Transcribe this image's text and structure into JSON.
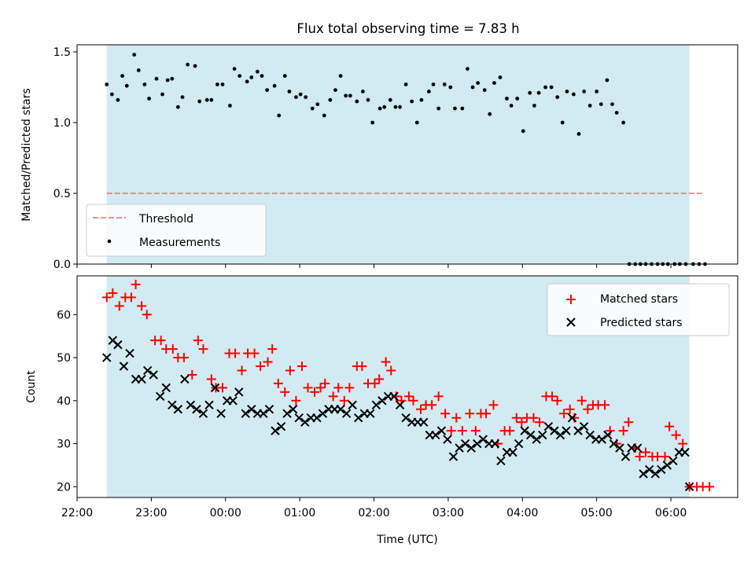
{
  "title": "Flux total observing time = 7.83 h",
  "colors": {
    "observing_band": "#add8e6",
    "threshold": "#f08080",
    "measurement": "#000000",
    "matched": "#ff0000",
    "predicted": "#000000"
  },
  "chart_data": [
    {
      "type": "scatter",
      "ylabel": "Matched/Predicted stars",
      "ylim": [
        0,
        1.55
      ],
      "yticks": [
        "0.0",
        "0.5",
        "1.0",
        "1.5"
      ],
      "ytick_values": [
        0,
        0.5,
        1.0,
        1.5
      ],
      "observing_band": [
        22.4,
        30.25
      ],
      "legend": {
        "placement": "lower-left",
        "entries": [
          "Threshold",
          "Measurements"
        ]
      },
      "threshold": {
        "name": "Threshold",
        "value": 0.5,
        "x": [
          22.4,
          30.45
        ]
      },
      "series": [
        {
          "name": "Measurements",
          "x": [
            22.4,
            22.47,
            22.55,
            22.61,
            22.67,
            22.77,
            22.83,
            22.91,
            22.97,
            23.07,
            23.15,
            23.22,
            23.28,
            23.36,
            23.42,
            23.49,
            23.59,
            23.65,
            23.75,
            23.81,
            23.89,
            23.96,
            24.06,
            24.12,
            24.19,
            24.29,
            24.35,
            24.43,
            24.49,
            24.56,
            24.66,
            24.72,
            24.8,
            24.86,
            24.95,
            25.01,
            25.08,
            25.17,
            25.24,
            25.33,
            25.41,
            25.48,
            25.55,
            25.62,
            25.68,
            25.77,
            25.85,
            25.92,
            25.98,
            26.08,
            26.14,
            26.22,
            26.29,
            26.35,
            26.43,
            26.51,
            26.58,
            26.64,
            26.74,
            26.8,
            26.87,
            26.95,
            27.03,
            27.09,
            27.19,
            27.26,
            27.33,
            27.4,
            27.49,
            27.56,
            27.62,
            27.7,
            27.79,
            27.85,
            27.93,
            28.01,
            28.1,
            28.16,
            28.22,
            28.31,
            28.39,
            28.47,
            28.54,
            28.6,
            28.69,
            28.76,
            28.83,
            28.91,
            29.0,
            29.06,
            29.14,
            29.21,
            29.27,
            29.36,
            29.44,
            29.52,
            29.59,
            29.66,
            29.74,
            29.82,
            29.89,
            29.96,
            30.05,
            30.12,
            30.2,
            30.3,
            30.38,
            30.46
          ],
          "y": [
            1.27,
            1.2,
            1.16,
            1.33,
            1.26,
            1.48,
            1.37,
            1.27,
            1.17,
            1.31,
            1.2,
            1.3,
            1.31,
            1.11,
            1.18,
            1.41,
            1.4,
            1.15,
            1.16,
            1.16,
            1.27,
            1.27,
            1.12,
            1.38,
            1.33,
            1.29,
            1.32,
            1.36,
            1.33,
            1.23,
            1.26,
            1.05,
            1.33,
            1.22,
            1.18,
            1.2,
            1.18,
            1.1,
            1.13,
            1.05,
            1.16,
            1.23,
            1.33,
            1.19,
            1.19,
            1.15,
            1.22,
            1.16,
            1.0,
            1.1,
            1.11,
            1.16,
            1.11,
            1.11,
            1.27,
            1.15,
            1.0,
            1.16,
            1.22,
            1.27,
            1.1,
            1.27,
            1.25,
            1.1,
            1.1,
            1.38,
            1.25,
            1.28,
            1.23,
            1.06,
            1.28,
            1.32,
            1.17,
            1.12,
            1.17,
            0.94,
            1.21,
            1.12,
            1.21,
            1.25,
            1.25,
            1.18,
            1.0,
            1.22,
            1.2,
            0.92,
            1.22,
            1.12,
            1.22,
            1.13,
            1.3,
            1.13,
            1.07,
            1.0,
            0.0,
            0.0,
            0.0,
            0.0,
            0.0,
            0.0,
            0.0,
            0.0,
            0.0,
            0.0,
            0.0,
            0.0,
            0.0,
            0.0
          ]
        }
      ]
    },
    {
      "type": "scatter",
      "ylabel": "Count",
      "xlabel": "Time (UTC)",
      "ylim": [
        17.5,
        69
      ],
      "yticks": [
        "20",
        "30",
        "40",
        "50",
        "60"
      ],
      "ytick_values": [
        20,
        30,
        40,
        50,
        60
      ],
      "xlim": [
        22,
        30.9
      ],
      "xticks": [
        "22:00",
        "23:00",
        "00:00",
        "01:00",
        "02:00",
        "03:00",
        "04:00",
        "05:00",
        "06:00"
      ],
      "xtick_values": [
        22,
        23,
        24,
        25,
        26,
        27,
        28,
        29,
        30
      ],
      "observing_band": [
        22.4,
        30.25
      ],
      "legend": {
        "placement": "top-right",
        "entries": [
          "Matched stars",
          "Predicted stars"
        ]
      },
      "series": [
        {
          "name": "Matched stars",
          "marker": "plus",
          "x": [
            22.4,
            22.48,
            22.57,
            22.65,
            22.73,
            22.79,
            22.87,
            22.94,
            23.05,
            23.13,
            23.2,
            23.29,
            23.36,
            23.44,
            23.55,
            23.63,
            23.7,
            23.81,
            23.87,
            23.96,
            24.05,
            24.13,
            24.22,
            24.3,
            24.39,
            24.47,
            24.57,
            24.63,
            24.71,
            24.8,
            24.87,
            24.95,
            25.03,
            25.11,
            25.2,
            25.28,
            25.34,
            25.45,
            25.52,
            25.6,
            25.67,
            25.77,
            25.84,
            25.92,
            26.01,
            26.07,
            26.16,
            26.23,
            26.3,
            26.37,
            26.47,
            26.53,
            26.63,
            26.7,
            26.78,
            26.87,
            26.96,
            27.04,
            27.11,
            27.19,
            27.29,
            27.37,
            27.44,
            27.51,
            27.61,
            27.67,
            27.76,
            27.83,
            27.92,
            27.99,
            28.06,
            28.15,
            28.23,
            28.32,
            28.4,
            28.47,
            28.56,
            28.64,
            28.7,
            28.8,
            28.88,
            28.95,
            29.02,
            29.11,
            29.18,
            29.27,
            29.36,
            29.43,
            29.52,
            29.58,
            29.66,
            29.75,
            29.82,
            29.92,
            29.98,
            30.07,
            30.16,
            30.25,
            30.35,
            30.43,
            30.52
          ],
          "y": [
            64,
            65,
            62,
            64,
            64,
            67,
            62,
            60,
            54,
            54,
            52,
            52,
            50,
            50,
            46,
            54,
            52,
            45,
            43,
            43,
            51,
            51,
            47,
            51,
            51,
            48,
            49,
            52,
            44,
            42,
            47,
            40,
            48,
            43,
            42,
            43,
            44,
            41,
            43,
            40,
            43,
            48,
            48,
            44,
            44,
            45,
            49,
            47,
            41,
            40,
            41,
            40,
            38,
            39,
            39,
            41,
            37,
            33,
            36,
            33,
            37,
            33,
            37,
            37,
            39,
            30,
            33,
            33,
            36,
            35,
            36,
            36,
            35,
            41,
            41,
            40,
            37,
            38,
            36,
            40,
            38,
            39,
            39,
            39,
            33,
            30,
            33,
            35,
            29,
            27,
            28,
            27,
            27,
            27,
            34,
            32,
            30,
            20,
            20,
            20,
            20
          ]
        },
        {
          "name": "Predicted stars",
          "marker": "x",
          "x": [
            22.4,
            22.48,
            22.55,
            22.63,
            22.71,
            22.79,
            22.87,
            22.95,
            23.03,
            23.12,
            23.2,
            23.28,
            23.36,
            23.45,
            23.53,
            23.61,
            23.7,
            23.78,
            23.86,
            23.94,
            24.02,
            24.1,
            24.18,
            24.27,
            24.35,
            24.43,
            24.51,
            24.59,
            24.67,
            24.75,
            24.83,
            24.91,
            24.99,
            25.07,
            25.15,
            25.23,
            25.31,
            25.39,
            25.47,
            25.55,
            25.63,
            25.71,
            25.79,
            25.87,
            25.95,
            26.03,
            26.11,
            26.19,
            26.27,
            26.35,
            26.43,
            26.51,
            26.59,
            26.67,
            26.75,
            26.83,
            26.91,
            26.99,
            27.07,
            27.15,
            27.23,
            27.31,
            27.39,
            27.47,
            27.55,
            27.63,
            27.71,
            27.79,
            27.87,
            27.95,
            28.03,
            28.11,
            28.19,
            28.27,
            28.35,
            28.43,
            28.51,
            28.59,
            28.67,
            28.75,
            28.83,
            28.91,
            28.99,
            29.07,
            29.15,
            29.23,
            29.31,
            29.39,
            29.47,
            29.55,
            29.63,
            29.71,
            29.79,
            29.87,
            29.95,
            30.03,
            30.11,
            30.19,
            30.25
          ],
          "y": [
            50,
            54,
            53,
            48,
            51,
            45,
            45,
            47,
            46,
            41,
            43,
            39,
            38,
            45,
            39,
            38,
            37,
            39,
            43,
            37,
            40,
            40,
            42,
            37,
            38,
            37,
            37,
            38,
            33,
            34,
            37,
            38,
            36,
            35,
            36,
            36,
            37,
            38,
            38,
            38,
            37,
            39,
            36,
            37,
            37,
            39,
            40,
            41,
            41,
            39,
            36,
            35,
            35,
            35,
            32,
            32,
            33,
            31,
            27,
            29,
            30,
            29,
            30,
            31,
            30,
            30,
            26,
            28,
            28,
            30,
            33,
            32,
            31,
            32,
            34,
            33,
            32,
            33,
            36,
            33,
            34,
            32,
            31,
            31,
            32,
            30,
            29,
            27,
            29,
            29,
            23,
            24,
            23,
            24,
            25,
            26,
            28,
            28,
            20
          ]
        }
      ]
    }
  ]
}
